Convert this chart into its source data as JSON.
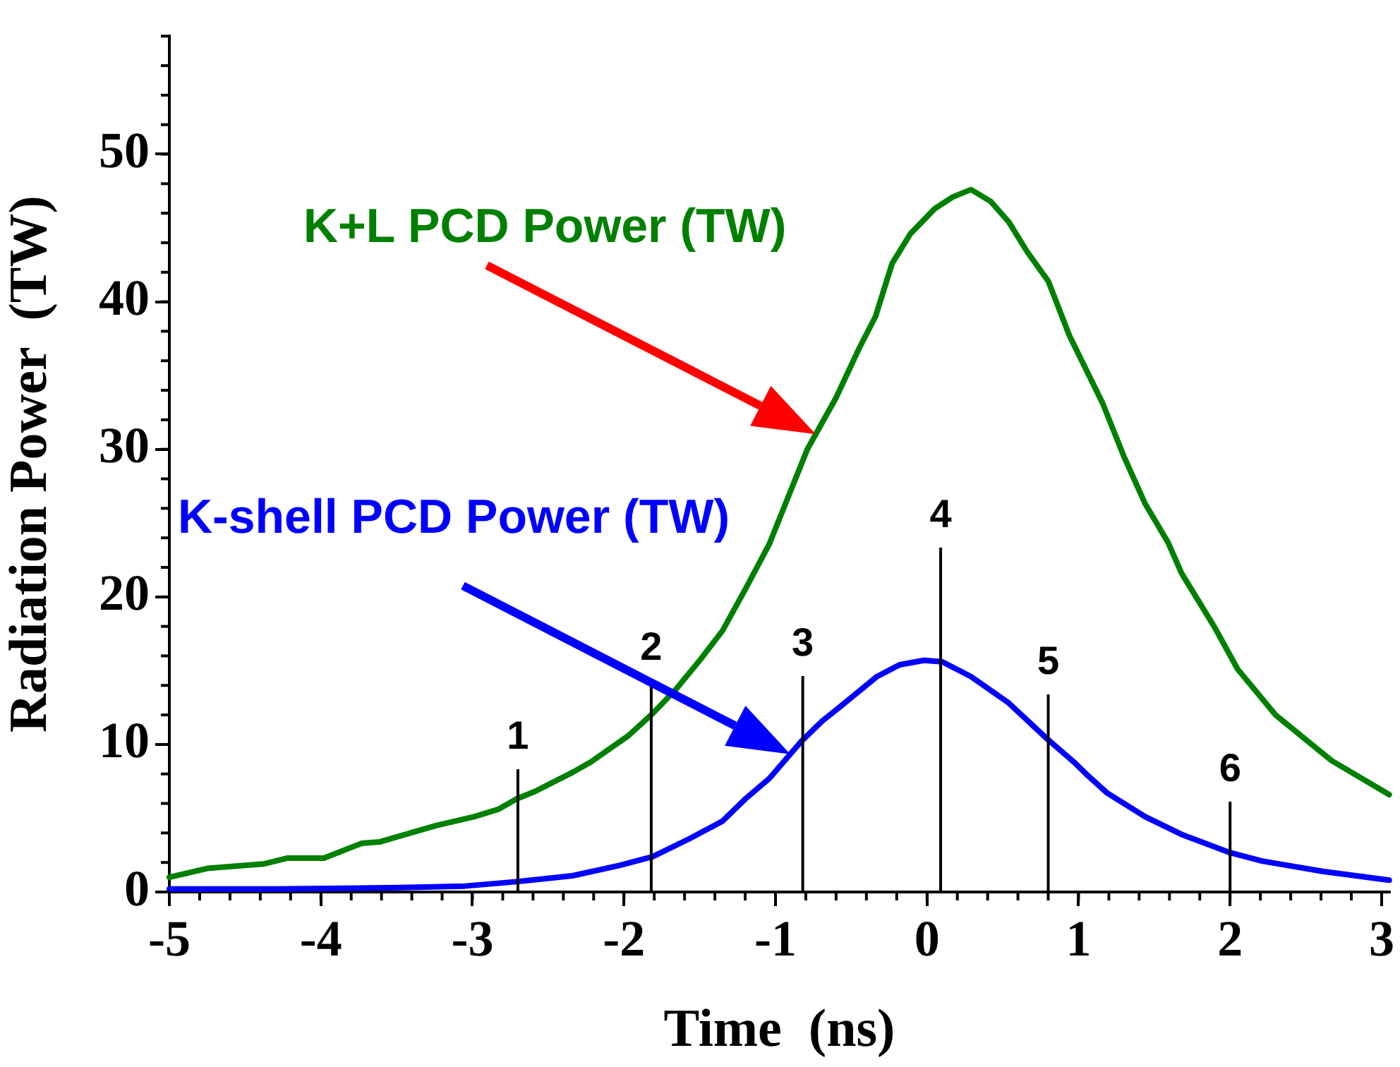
{
  "chart_data": {
    "type": "line",
    "xlabel": "Time  (ns)",
    "ylabel": "Radiation Power  (TW)",
    "xlim": [
      -5,
      3.05
    ],
    "xticks": [
      -5,
      -4,
      -3,
      -2,
      -1,
      0,
      1,
      2,
      3
    ],
    "ylim": [
      0,
      58
    ],
    "yticks": [
      0,
      10,
      20,
      30,
      40,
      50
    ],
    "grid": false,
    "legend": false,
    "marker": "none",
    "line_style": "solid",
    "series": [
      {
        "name": "K+L PCD Power (TW)",
        "color": "#008000",
        "x": [
          -5.0,
          -4.75,
          -4.38,
          -4.22,
          -3.98,
          -3.73,
          -3.61,
          -3.24,
          -2.99,
          -2.83,
          -2.71,
          -2.59,
          -2.34,
          -2.22,
          -1.97,
          -1.81,
          -1.66,
          -1.5,
          -1.35,
          -1.2,
          -1.04,
          -0.79,
          -0.6,
          -0.45,
          -0.34,
          -0.23,
          -0.11,
          0.05,
          0.17,
          0.29,
          0.42,
          0.54,
          0.66,
          0.8,
          0.94,
          1.16,
          1.3,
          1.44,
          1.59,
          1.68,
          1.9,
          2.05,
          2.3,
          2.67,
          3.05
        ],
        "values": [
          1.0,
          1.6,
          1.9,
          2.3,
          2.3,
          3.3,
          3.4,
          4.5,
          5.1,
          5.6,
          6.3,
          6.8,
          8.1,
          8.8,
          10.6,
          12.1,
          13.7,
          15.7,
          17.7,
          20.5,
          23.6,
          30.0,
          33.5,
          36.8,
          39.0,
          42.6,
          44.6,
          46.3,
          47.1,
          47.6,
          46.8,
          45.4,
          43.4,
          41.4,
          37.7,
          33.1,
          29.5,
          26.3,
          23.7,
          21.6,
          17.9,
          15.1,
          12.0,
          8.9,
          6.6
        ]
      },
      {
        "name": "K-shell PCD Power (TW)",
        "color": "#0000ff",
        "x": [
          -5.0,
          -4.29,
          -3.48,
          -3.05,
          -2.71,
          -2.34,
          -2.03,
          -1.81,
          -1.57,
          -1.35,
          -1.2,
          -1.04,
          -0.83,
          -0.69,
          -0.58,
          -0.33,
          -0.18,
          -0.02,
          0.1,
          0.29,
          0.54,
          0.79,
          0.97,
          1.06,
          1.19,
          1.44,
          1.68,
          1.99,
          2.21,
          2.61,
          3.05
        ],
        "values": [
          0.2,
          0.2,
          0.3,
          0.4,
          0.7,
          1.1,
          1.8,
          2.4,
          3.6,
          4.8,
          6.3,
          7.7,
          10.2,
          11.6,
          12.5,
          14.6,
          15.4,
          15.7,
          15.6,
          14.6,
          12.8,
          10.4,
          8.8,
          7.9,
          6.7,
          5.1,
          3.9,
          2.7,
          2.1,
          1.4,
          0.8
        ]
      }
    ],
    "ref_lines": [
      {
        "axis": "x",
        "value": -2.7
      },
      {
        "axis": "x",
        "value": -1.82
      },
      {
        "axis": "x",
        "value": -0.82
      },
      {
        "axis": "x",
        "value": 0.09
      },
      {
        "axis": "x",
        "value": 0.8
      },
      {
        "axis": "x",
        "value": 2.0
      }
    ],
    "annotations": [
      "1",
      "2",
      "3",
      "4",
      "5",
      "6"
    ]
  }
}
